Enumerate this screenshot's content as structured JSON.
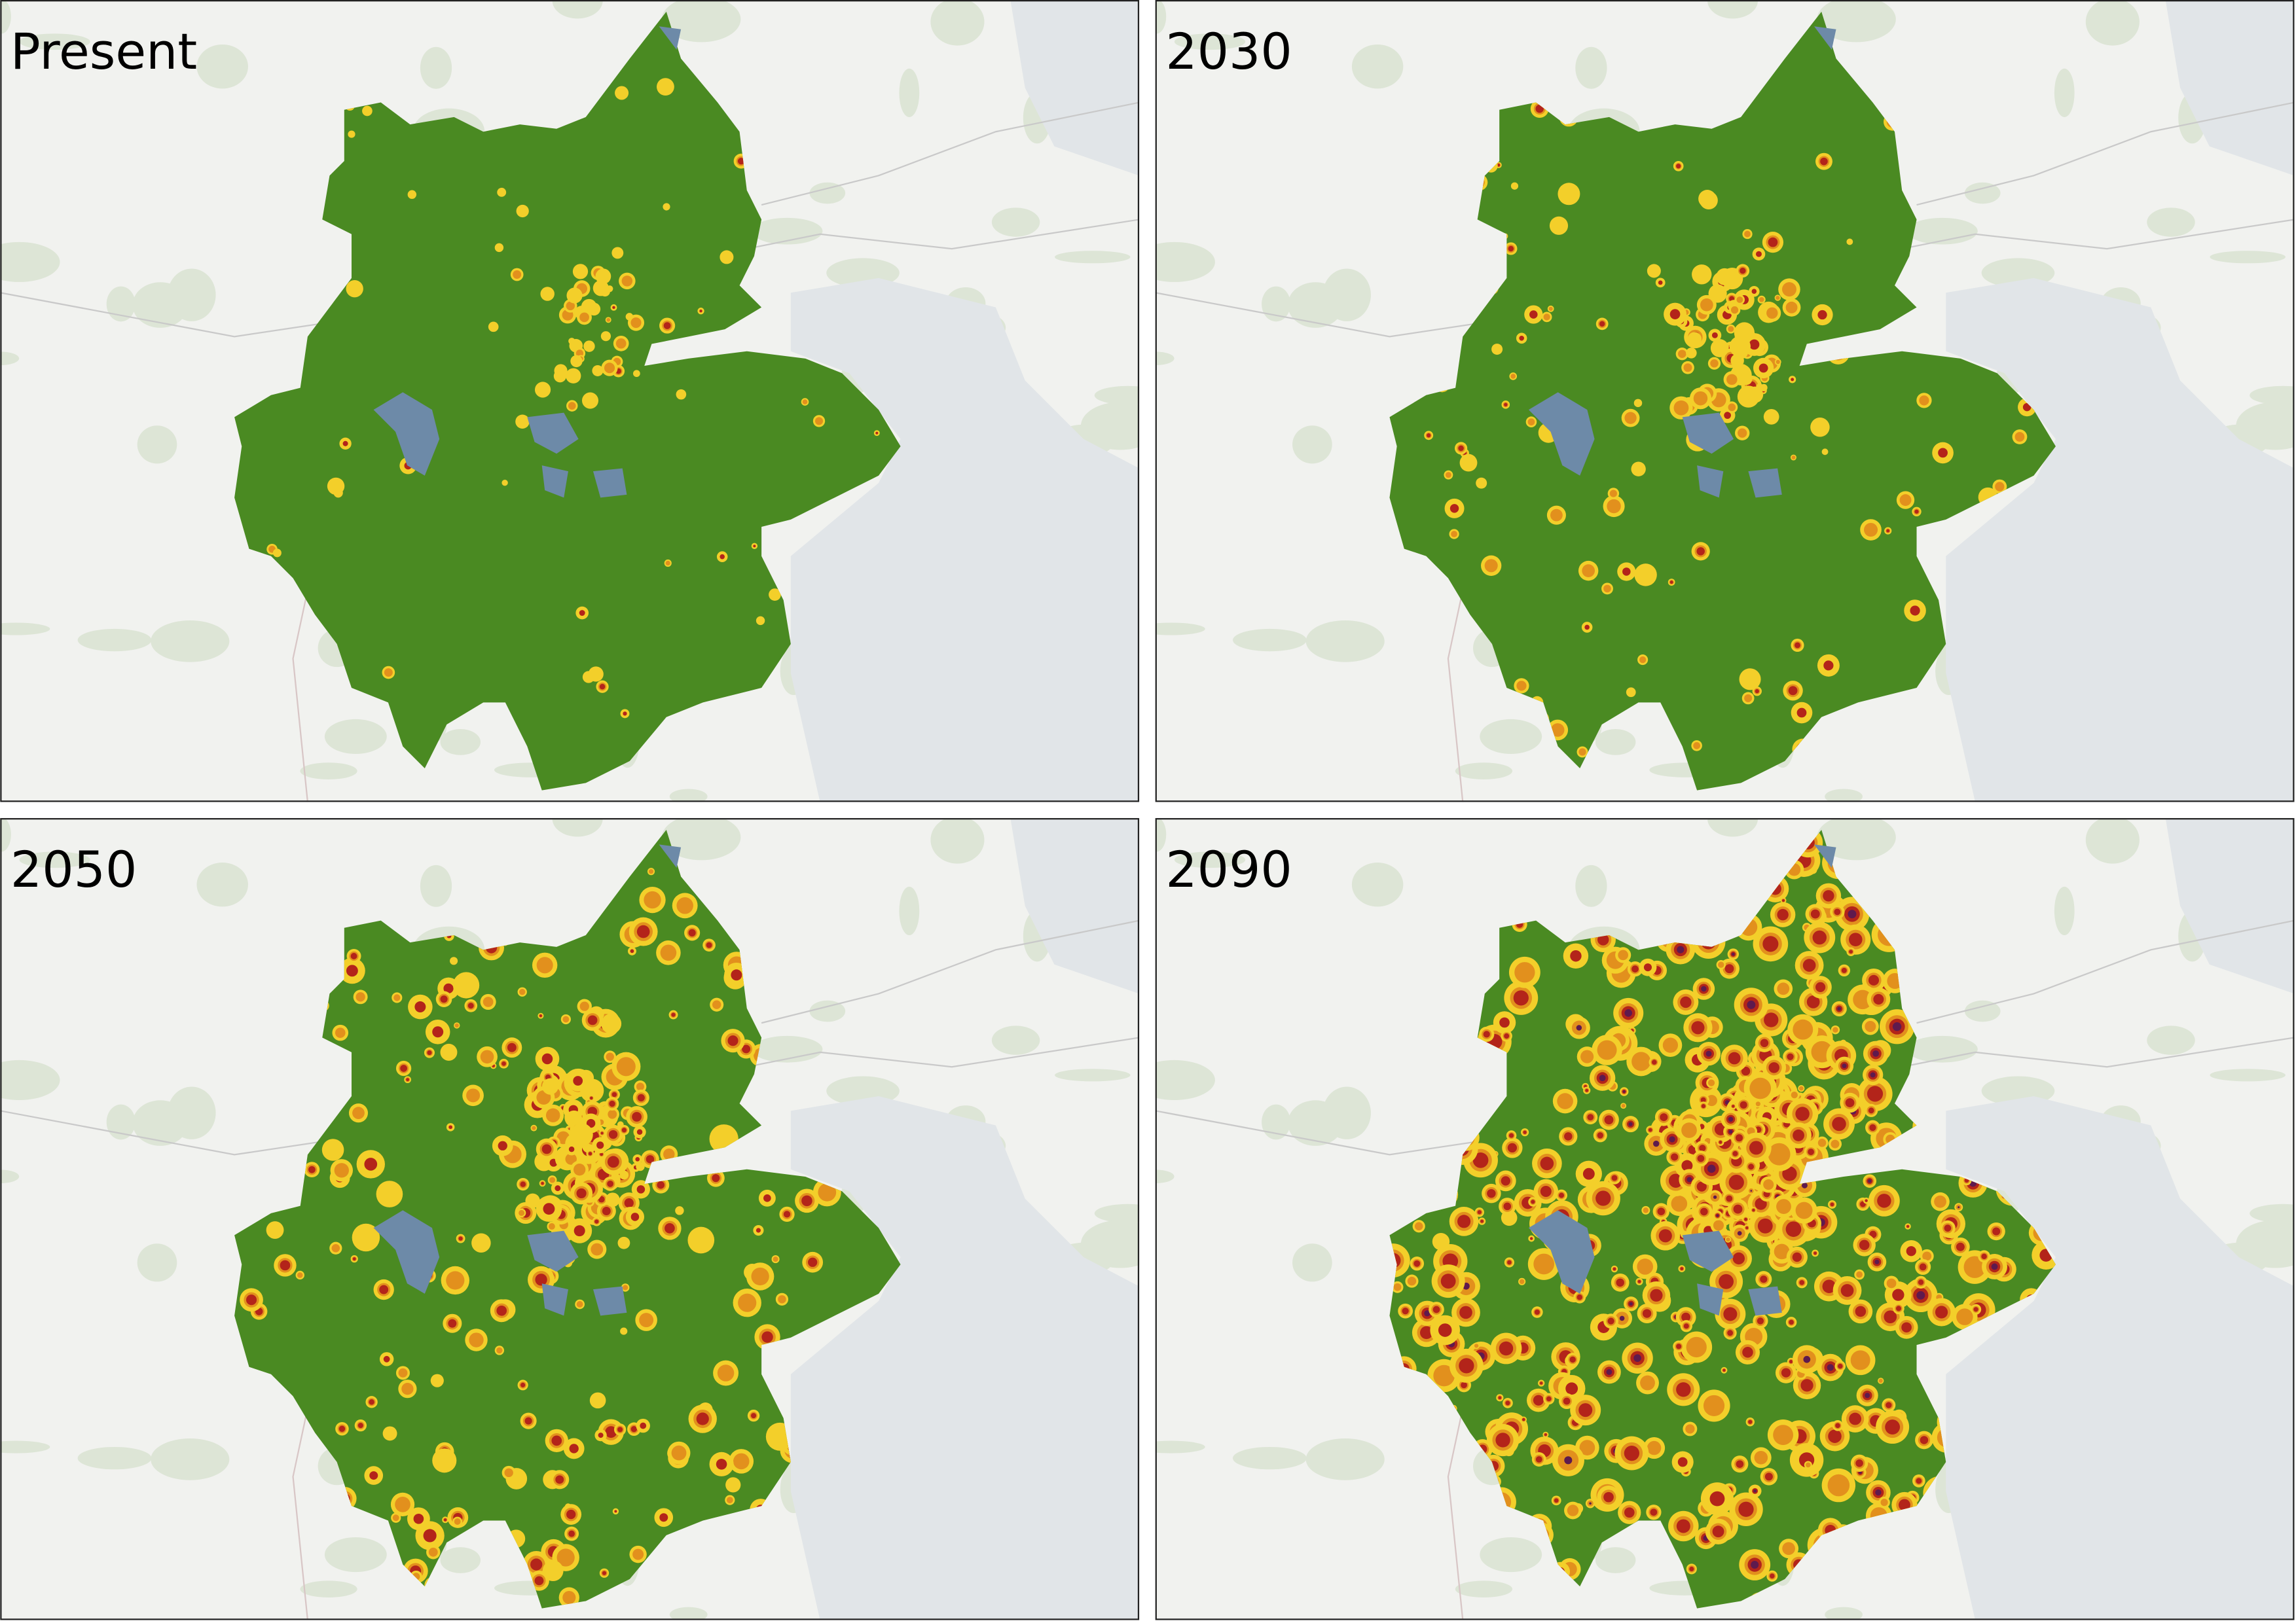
{
  "panels": [
    {
      "label": "Present"
    },
    {
      "label": "2030"
    },
    {
      "label": "2050"
    },
    {
      "label": "2090"
    }
  ]
}
